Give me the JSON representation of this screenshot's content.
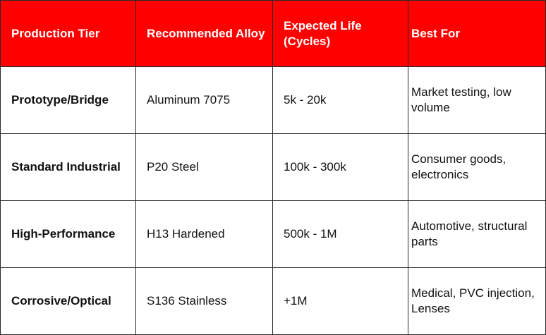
{
  "headers": [
    "Production Tier",
    "Recommended Alloy",
    "Expected Life (Cycles)",
    "Best For"
  ],
  "rows": [
    {
      "tier": "Prototype/Bridge",
      "alloy": "Aluminum 7075",
      "life": "5k - 20k",
      "best_for": "Market testing, low volume"
    },
    {
      "tier": "Standard Industrial",
      "alloy": "P20 Steel",
      "life": "100k - 300k",
      "best_for": "Consumer goods, electronics"
    },
    {
      "tier": "High-Performance",
      "alloy": "H13 Hardened",
      "life": "500k - 1M",
      "best_for": "Automotive, structural parts"
    },
    {
      "tier": "Corrosive/Optical",
      "alloy": "S136 Stainless",
      "life": "+1M",
      "best_for": "Medical, PVC injection, Lenses"
    }
  ],
  "colors": {
    "header_bg": "#ff0000",
    "header_text": "#ffffff",
    "border": "#2a2a2a"
  }
}
